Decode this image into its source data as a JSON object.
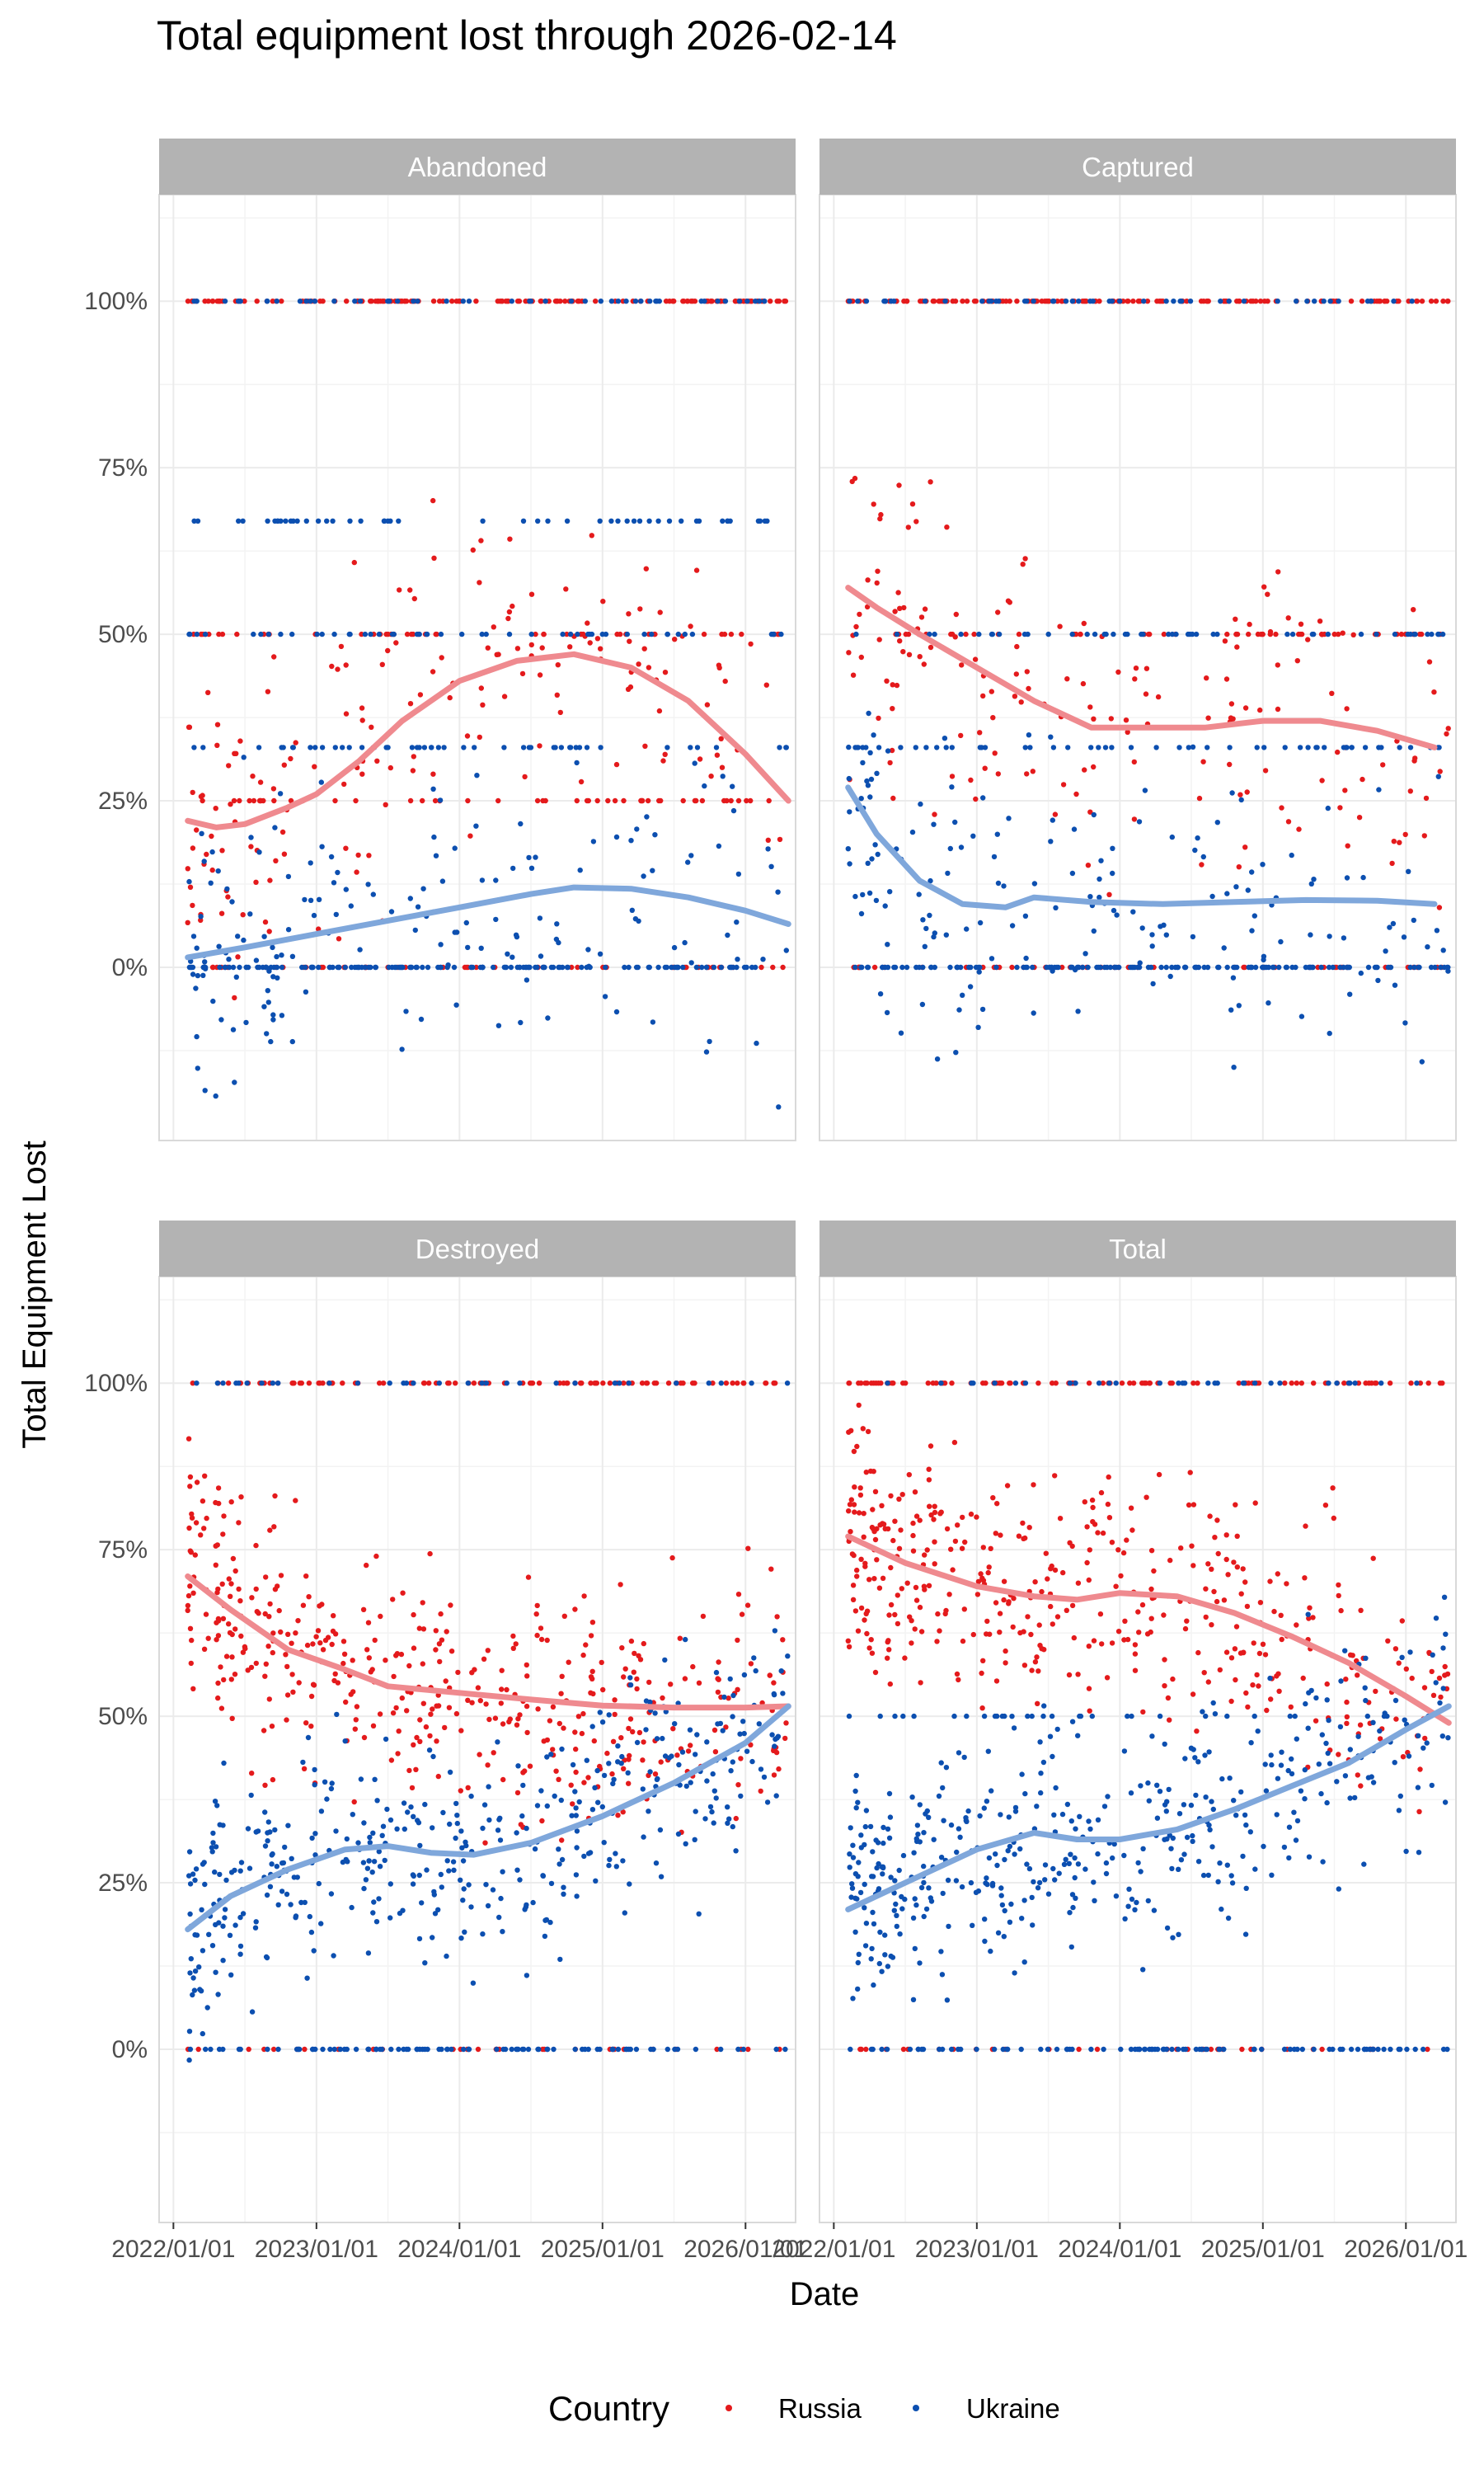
{
  "chart_data": {
    "type": "scatter",
    "title": "Total equipment lost through 2026-02-14",
    "xlabel": "Date",
    "ylabel": "Total Equipment Lost",
    "x_ticks": [
      "2022/01/01",
      "2023/01/01",
      "2024/01/01",
      "2025/01/01",
      "2026/01/01"
    ],
    "x_tick_years": [
      2022,
      2023,
      2024,
      2025,
      2026
    ],
    "xlim": [
      2021.9,
      2026.35
    ],
    "y_ticks": [
      "0%",
      "25%",
      "50%",
      "75%",
      "100%"
    ],
    "y_tick_values": [
      0,
      25,
      50,
      75,
      100
    ],
    "ylim": [
      -26,
      116
    ],
    "grid": true,
    "legend": {
      "title": "Country",
      "position": "bottom",
      "entries": [
        {
          "name": "Russia",
          "color": "#e41a1c"
        },
        {
          "name": "Ukraine",
          "color": "#0c4fb0"
        }
      ]
    },
    "colors": {
      "Russia": "#e41a1c",
      "Ukraine": "#0c4fb0",
      "Russia_trend": "#ef8a8f",
      "Ukraine_trend": "#7fa7db",
      "strip": "#b3b3b3",
      "grid": "#ebebeb"
    },
    "facets": [
      {
        "name": "Abandoned",
        "series": [
          {
            "name": "Russia",
            "trend": [
              [
                2022.1,
                22
              ],
              [
                2022.3,
                21
              ],
              [
                2022.5,
                21.5
              ],
              [
                2022.8,
                24
              ],
              [
                2023.0,
                26
              ],
              [
                2023.3,
                31
              ],
              [
                2023.6,
                37
              ],
              [
                2024.0,
                43
              ],
              [
                2024.4,
                46
              ],
              [
                2024.8,
                47
              ],
              [
                2025.2,
                45
              ],
              [
                2025.6,
                40
              ],
              [
                2026.0,
                32
              ],
              [
                2026.3,
                25
              ]
            ]
          },
          {
            "name": "Ukraine",
            "trend": [
              [
                2022.1,
                1.5
              ],
              [
                2022.5,
                3
              ],
              [
                2023.0,
                5
              ],
              [
                2023.5,
                7
              ],
              [
                2024.0,
                9
              ],
              [
                2024.5,
                11
              ],
              [
                2024.8,
                12
              ],
              [
                2025.2,
                11.8
              ],
              [
                2025.6,
                10.5
              ],
              [
                2026.0,
                8.5
              ],
              [
                2026.3,
                6.5
              ]
            ]
          }
        ],
        "scatter_profile": {
          "Russia": {
            "lines": [
              100,
              50,
              25,
              0
            ],
            "x_range": [
              2022.1,
              2026.3
            ]
          },
          "Ukraine": {
            "lines": [
              0,
              50,
              33,
              67,
              100
            ],
            "x_range": [
              2022.1,
              2026.3
            ]
          }
        }
      },
      {
        "name": "Captured",
        "series": [
          {
            "name": "Russia",
            "trend": [
              [
                2022.1,
                57
              ],
              [
                2022.3,
                54
              ],
              [
                2022.6,
                50
              ],
              [
                2023.0,
                45
              ],
              [
                2023.4,
                40
              ],
              [
                2023.8,
                36
              ],
              [
                2024.2,
                36
              ],
              [
                2024.6,
                36
              ],
              [
                2025.0,
                37
              ],
              [
                2025.4,
                37
              ],
              [
                2025.8,
                35.5
              ],
              [
                2026.2,
                33
              ]
            ]
          },
          {
            "name": "Ukraine",
            "trend": [
              [
                2022.1,
                27
              ],
              [
                2022.3,
                20
              ],
              [
                2022.6,
                13
              ],
              [
                2022.9,
                9.5
              ],
              [
                2023.2,
                9
              ],
              [
                2023.4,
                10.5
              ],
              [
                2023.8,
                9.8
              ],
              [
                2024.3,
                9.5
              ],
              [
                2024.8,
                9.8
              ],
              [
                2025.3,
                10.1
              ],
              [
                2025.8,
                10
              ],
              [
                2026.2,
                9.5
              ]
            ]
          }
        ],
        "scatter_profile": {
          "Russia": {
            "lines": [
              100,
              0,
              50
            ],
            "x_range": [
              2022.1,
              2026.3
            ]
          },
          "Ukraine": {
            "lines": [
              0,
              100,
              50,
              33
            ],
            "x_range": [
              2022.1,
              2026.3
            ]
          }
        }
      },
      {
        "name": "Destroyed",
        "series": [
          {
            "name": "Russia",
            "trend": [
              [
                2022.1,
                71
              ],
              [
                2022.4,
                66
              ],
              [
                2022.8,
                60
              ],
              [
                2023.2,
                57
              ],
              [
                2023.5,
                54.5
              ],
              [
                2024.0,
                53.5
              ],
              [
                2024.5,
                52.5
              ],
              [
                2025.0,
                51.6
              ],
              [
                2025.5,
                51.3
              ],
              [
                2026.0,
                51.3
              ],
              [
                2026.3,
                51.5
              ]
            ]
          },
          {
            "name": "Ukraine",
            "trend": [
              [
                2022.1,
                18
              ],
              [
                2022.4,
                23
              ],
              [
                2022.8,
                27
              ],
              [
                2023.2,
                30
              ],
              [
                2023.5,
                30.5
              ],
              [
                2023.8,
                29.5
              ],
              [
                2024.1,
                29.2
              ],
              [
                2024.5,
                31
              ],
              [
                2025.0,
                35
              ],
              [
                2025.5,
                40
              ],
              [
                2026.0,
                46
              ],
              [
                2026.3,
                51.5
              ]
            ]
          }
        ],
        "scatter_profile": {
          "Russia": {
            "lines": [
              100,
              0
            ],
            "x_range": [
              2022.1,
              2026.3
            ]
          },
          "Ukraine": {
            "lines": [
              0,
              100
            ],
            "x_range": [
              2022.1,
              2026.3
            ]
          }
        }
      },
      {
        "name": "Total",
        "series": [
          {
            "name": "Russia",
            "trend": [
              [
                2022.1,
                77
              ],
              [
                2022.5,
                73
              ],
              [
                2023.0,
                69.5
              ],
              [
                2023.4,
                68
              ],
              [
                2023.7,
                67.5
              ],
              [
                2024.0,
                68.5
              ],
              [
                2024.4,
                68
              ],
              [
                2024.8,
                65.5
              ],
              [
                2025.2,
                62
              ],
              [
                2025.6,
                58
              ],
              [
                2026.0,
                53
              ],
              [
                2026.3,
                49
              ]
            ]
          },
          {
            "name": "Ukraine",
            "trend": [
              [
                2022.1,
                21
              ],
              [
                2022.5,
                25
              ],
              [
                2023.0,
                30
              ],
              [
                2023.4,
                32.5
              ],
              [
                2023.7,
                31.5
              ],
              [
                2024.0,
                31.5
              ],
              [
                2024.4,
                33
              ],
              [
                2024.8,
                36
              ],
              [
                2025.2,
                39.5
              ],
              [
                2025.6,
                43
              ],
              [
                2026.0,
                48
              ],
              [
                2026.3,
                51.5
              ]
            ]
          }
        ],
        "scatter_profile": {
          "Russia": {
            "lines": [
              100,
              0
            ],
            "x_range": [
              2022.1,
              2026.3
            ]
          },
          "Ukraine": {
            "lines": [
              0,
              100,
              50
            ],
            "x_range": [
              2022.1,
              2026.3
            ]
          }
        }
      }
    ]
  }
}
